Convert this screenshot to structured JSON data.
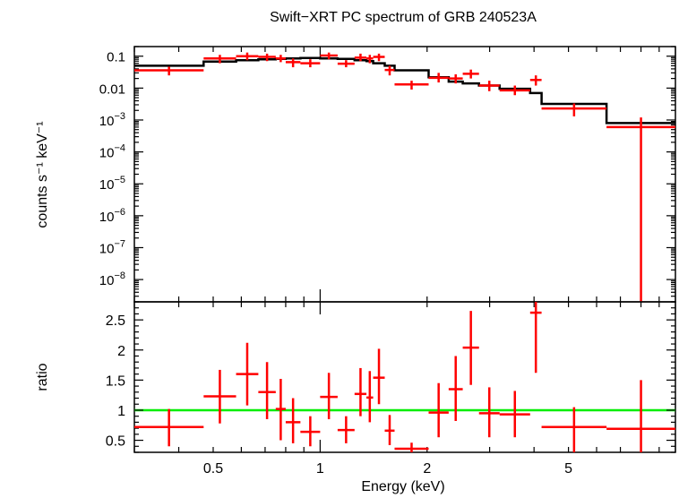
{
  "chart_data": [
    {
      "type": "scatter",
      "panel": "spectrum",
      "title": "Swift−XRT PC spectrum of GRB 240523A",
      "ylabel": "counts s⁻¹ keV⁻¹",
      "xscale": "log",
      "yscale": "log",
      "xlim": [
        0.3,
        10
      ],
      "ylim": [
        2e-09,
        0.2
      ],
      "ytick_labels": [
        {
          "value": 0.1,
          "base": "0.1",
          "exp": ""
        },
        {
          "value": 0.01,
          "base": "0.01",
          "exp": ""
        },
        {
          "value": 0.001,
          "base": "10",
          "exp": "−3"
        },
        {
          "value": 0.0001,
          "base": "10",
          "exp": "−4"
        },
        {
          "value": 1e-05,
          "base": "10",
          "exp": "−5"
        },
        {
          "value": 1e-06,
          "base": "10",
          "exp": "−6"
        },
        {
          "value": 1e-07,
          "base": "10",
          "exp": "−7"
        },
        {
          "value": 1e-08,
          "base": "10",
          "exp": "−8"
        }
      ],
      "series": [
        {
          "color": "#ff0000",
          "points": [
            {
              "x0": 0.3,
              "x1": 0.47,
              "y": 0.036,
              "ylo": 0.025,
              "yhi": 0.047
            },
            {
              "x0": 0.47,
              "x1": 0.58,
              "y": 0.085,
              "ylo": 0.06,
              "yhi": 0.11
            },
            {
              "x0": 0.58,
              "x1": 0.67,
              "y": 0.1,
              "ylo": 0.075,
              "yhi": 0.13
            },
            {
              "x0": 0.67,
              "x1": 0.75,
              "y": 0.095,
              "ylo": 0.07,
              "yhi": 0.12
            },
            {
              "x0": 0.75,
              "x1": 0.8,
              "y": 0.085,
              "ylo": 0.065,
              "yhi": 0.11
            },
            {
              "x0": 0.8,
              "x1": 0.88,
              "y": 0.065,
              "ylo": 0.045,
              "yhi": 0.085
            },
            {
              "x0": 0.88,
              "x1": 1.0,
              "y": 0.06,
              "ylo": 0.045,
              "yhi": 0.08
            },
            {
              "x0": 1.0,
              "x1": 1.12,
              "y": 0.105,
              "ylo": 0.08,
              "yhi": 0.13
            },
            {
              "x0": 1.12,
              "x1": 1.25,
              "y": 0.058,
              "ylo": 0.045,
              "yhi": 0.075
            },
            {
              "x0": 1.25,
              "x1": 1.35,
              "y": 0.09,
              "ylo": 0.07,
              "yhi": 0.12
            },
            {
              "x0": 1.35,
              "x1": 1.41,
              "y": 0.085,
              "ylo": 0.06,
              "yhi": 0.11
            },
            {
              "x0": 1.41,
              "x1": 1.52,
              "y": 0.095,
              "ylo": 0.07,
              "yhi": 0.12
            },
            {
              "x0": 1.52,
              "x1": 1.62,
              "y": 0.037,
              "ylo": 0.025,
              "yhi": 0.05
            },
            {
              "x0": 1.62,
              "x1": 2.02,
              "y": 0.013,
              "ylo": 0.009,
              "yhi": 0.017
            },
            {
              "x0": 2.02,
              "x1": 2.3,
              "y": 0.021,
              "ylo": 0.015,
              "yhi": 0.03
            },
            {
              "x0": 2.3,
              "x1": 2.52,
              "y": 0.02,
              "ylo": 0.014,
              "yhi": 0.027
            },
            {
              "x0": 2.52,
              "x1": 2.8,
              "y": 0.028,
              "ylo": 0.02,
              "yhi": 0.038
            },
            {
              "x0": 2.8,
              "x1": 3.2,
              "y": 0.012,
              "ylo": 0.008,
              "yhi": 0.017
            },
            {
              "x0": 3.2,
              "x1": 3.9,
              "y": 0.0085,
              "ylo": 0.006,
              "yhi": 0.012
            },
            {
              "x0": 3.9,
              "x1": 4.2,
              "y": 0.018,
              "ylo": 0.012,
              "yhi": 0.025
            },
            {
              "x0": 4.2,
              "x1": 6.4,
              "y": 0.0023,
              "ylo": 0.0013,
              "yhi": 0.0033
            },
            {
              "x0": 6.4,
              "x1": 10.0,
              "y": 0.0006,
              "ylo": 2e-09,
              "yhi": 0.0012
            }
          ]
        }
      ],
      "model": {
        "color": "#000000",
        "steps": [
          {
            "x0": 0.3,
            "x1": 0.47,
            "y": 0.05
          },
          {
            "x0": 0.47,
            "x1": 0.58,
            "y": 0.068
          },
          {
            "x0": 0.58,
            "x1": 0.67,
            "y": 0.075
          },
          {
            "x0": 0.67,
            "x1": 0.75,
            "y": 0.08
          },
          {
            "x0": 0.75,
            "x1": 0.8,
            "y": 0.082
          },
          {
            "x0": 0.8,
            "x1": 0.88,
            "y": 0.085
          },
          {
            "x0": 0.88,
            "x1": 1.0,
            "y": 0.088
          },
          {
            "x0": 1.0,
            "x1": 1.12,
            "y": 0.085
          },
          {
            "x0": 1.12,
            "x1": 1.25,
            "y": 0.082
          },
          {
            "x0": 1.25,
            "x1": 1.35,
            "y": 0.075
          },
          {
            "x0": 1.35,
            "x1": 1.41,
            "y": 0.07
          },
          {
            "x0": 1.41,
            "x1": 1.52,
            "y": 0.06
          },
          {
            "x0": 1.52,
            "x1": 1.62,
            "y": 0.05
          },
          {
            "x0": 1.62,
            "x1": 2.02,
            "y": 0.036
          },
          {
            "x0": 2.02,
            "x1": 2.3,
            "y": 0.022
          },
          {
            "x0": 2.3,
            "x1": 2.52,
            "y": 0.016
          },
          {
            "x0": 2.52,
            "x1": 2.8,
            "y": 0.014
          },
          {
            "x0": 2.8,
            "x1": 3.2,
            "y": 0.012
          },
          {
            "x0": 3.2,
            "x1": 3.9,
            "y": 0.0095
          },
          {
            "x0": 3.9,
            "x1": 4.2,
            "y": 0.007
          },
          {
            "x0": 4.2,
            "x1": 6.4,
            "y": 0.0032
          },
          {
            "x0": 6.4,
            "x1": 10.0,
            "y": 0.0008
          }
        ]
      }
    },
    {
      "type": "scatter",
      "panel": "ratio",
      "xlabel": "Energy (keV)",
      "ylabel": "ratio",
      "xscale": "log",
      "yscale": "linear",
      "xlim": [
        0.3,
        10
      ],
      "ylim": [
        0.3,
        2.8
      ],
      "x_tick_labels": [
        {
          "value": 0.5,
          "label": "0.5"
        },
        {
          "value": 1,
          "label": "1"
        },
        {
          "value": 2,
          "label": "2"
        },
        {
          "value": 5,
          "label": "5"
        }
      ],
      "y_tick_labels": [
        {
          "value": 0.5,
          "label": "0.5"
        },
        {
          "value": 1,
          "label": "1"
        },
        {
          "value": 1.5,
          "label": "1.5"
        },
        {
          "value": 2,
          "label": "2"
        },
        {
          "value": 2.5,
          "label": "2.5"
        }
      ],
      "reference_line": {
        "y": 1.0,
        "color": "#00ee00"
      },
      "series": [
        {
          "color": "#ff0000",
          "points": [
            {
              "x0": 0.3,
              "x1": 0.47,
              "y": 0.72,
              "ylo": 0.4,
              "yhi": 1.02
            },
            {
              "x0": 0.47,
              "x1": 0.58,
              "y": 1.23,
              "ylo": 0.78,
              "yhi": 1.67
            },
            {
              "x0": 0.58,
              "x1": 0.67,
              "y": 1.6,
              "ylo": 1.08,
              "yhi": 2.12
            },
            {
              "x0": 0.67,
              "x1": 0.75,
              "y": 1.3,
              "ylo": 0.85,
              "yhi": 1.8
            },
            {
              "x0": 0.75,
              "x1": 0.8,
              "y": 1.02,
              "ylo": 0.5,
              "yhi": 1.52
            },
            {
              "x0": 0.8,
              "x1": 0.88,
              "y": 0.8,
              "ylo": 0.45,
              "yhi": 1.2
            },
            {
              "x0": 0.88,
              "x1": 1.0,
              "y": 0.64,
              "ylo": 0.4,
              "yhi": 0.9
            },
            {
              "x0": 1.0,
              "x1": 1.12,
              "y": 1.22,
              "ylo": 0.85,
              "yhi": 1.62
            },
            {
              "x0": 1.12,
              "x1": 1.25,
              "y": 0.67,
              "ylo": 0.45,
              "yhi": 0.9
            },
            {
              "x0": 1.25,
              "x1": 1.35,
              "y": 1.27,
              "ylo": 0.9,
              "yhi": 1.7
            },
            {
              "x0": 1.35,
              "x1": 1.41,
              "y": 1.21,
              "ylo": 0.8,
              "yhi": 1.65
            },
            {
              "x0": 1.41,
              "x1": 1.52,
              "y": 1.54,
              "ylo": 1.1,
              "yhi": 2.02
            },
            {
              "x0": 1.52,
              "x1": 1.62,
              "y": 0.66,
              "ylo": 0.42,
              "yhi": 0.92
            },
            {
              "x0": 1.62,
              "x1": 2.02,
              "y": 0.36,
              "ylo": 0.27,
              "yhi": 0.46
            },
            {
              "x0": 2.02,
              "x1": 2.3,
              "y": 0.96,
              "ylo": 0.55,
              "yhi": 1.45
            },
            {
              "x0": 2.3,
              "x1": 2.52,
              "y": 1.35,
              "ylo": 0.82,
              "yhi": 1.9
            },
            {
              "x0": 2.52,
              "x1": 2.8,
              "y": 2.04,
              "ylo": 1.42,
              "yhi": 2.65
            },
            {
              "x0": 2.8,
              "x1": 3.2,
              "y": 0.95,
              "ylo": 0.55,
              "yhi": 1.38
            },
            {
              "x0": 3.2,
              "x1": 3.9,
              "y": 0.93,
              "ylo": 0.55,
              "yhi": 1.32
            },
            {
              "x0": 3.9,
              "x1": 4.2,
              "y": 2.62,
              "ylo": 1.62,
              "yhi": 3.0
            },
            {
              "x0": 4.2,
              "x1": 6.4,
              "y": 0.72,
              "ylo": 0.3,
              "yhi": 1.05
            },
            {
              "x0": 6.4,
              "x1": 10.0,
              "y": 0.69,
              "ylo": 0.3,
              "yhi": 1.5
            }
          ]
        }
      ]
    }
  ]
}
